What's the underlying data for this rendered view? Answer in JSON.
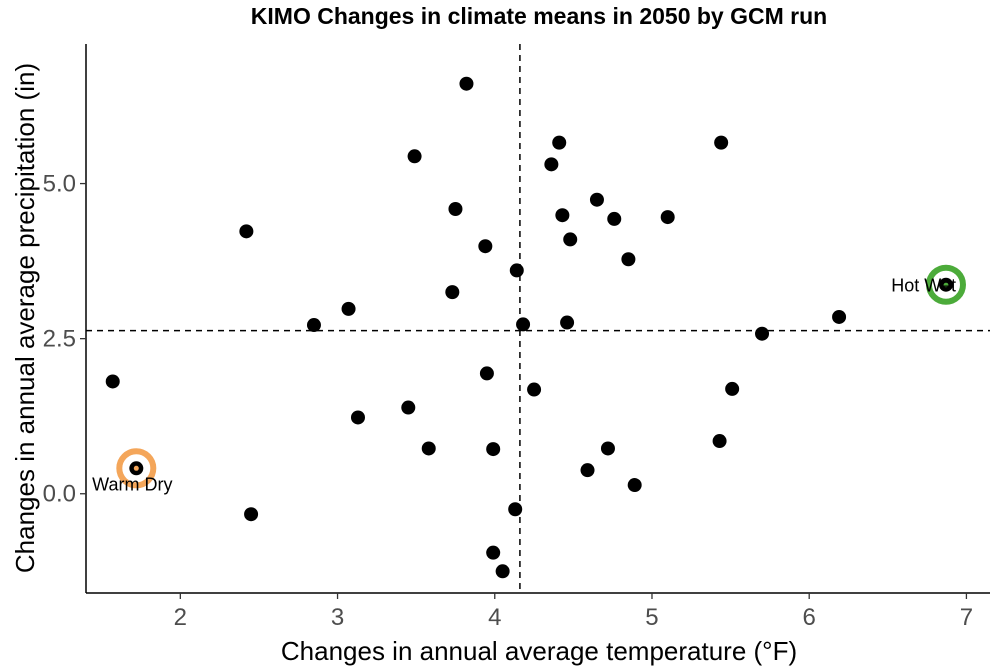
{
  "chart_data": {
    "type": "scatter",
    "title": "KIMO Changes in climate means in 2050 by GCM run",
    "xlabel": "Changes in annual average temperature (°F)",
    "ylabel": "Changes in annual average precipitation (in)",
    "xlim": [
      1.4,
      7.15
    ],
    "ylim": [
      -1.6,
      7.25
    ],
    "x_ticks": [
      2,
      3,
      4,
      5,
      6,
      7
    ],
    "x_tick_labels": [
      "2",
      "3",
      "4",
      "5",
      "6",
      "7"
    ],
    "y_ticks": [
      0,
      2.5,
      5
    ],
    "y_tick_labels": [
      "0.0",
      "2.5",
      "5.0"
    ],
    "grid": false,
    "reference_lines": {
      "x": 4.16,
      "y": 2.63
    },
    "points": [
      {
        "x": 1.57,
        "y": 1.81
      },
      {
        "x": 1.72,
        "y": 0.41
      },
      {
        "x": 2.42,
        "y": 4.23
      },
      {
        "x": 2.45,
        "y": -0.33
      },
      {
        "x": 2.85,
        "y": 2.72
      },
      {
        "x": 3.07,
        "y": 2.98
      },
      {
        "x": 3.13,
        "y": 1.23
      },
      {
        "x": 3.45,
        "y": 1.39
      },
      {
        "x": 3.49,
        "y": 5.44
      },
      {
        "x": 3.58,
        "y": 0.73
      },
      {
        "x": 3.73,
        "y": 3.25
      },
      {
        "x": 3.75,
        "y": 4.59
      },
      {
        "x": 3.82,
        "y": 6.61
      },
      {
        "x": 3.94,
        "y": 3.99
      },
      {
        "x": 3.95,
        "y": 1.94
      },
      {
        "x": 3.99,
        "y": 0.72
      },
      {
        "x": 3.99,
        "y": -0.95
      },
      {
        "x": 4.05,
        "y": -1.25
      },
      {
        "x": 4.13,
        "y": -0.25
      },
      {
        "x": 4.14,
        "y": 3.6
      },
      {
        "x": 4.18,
        "y": 2.73
      },
      {
        "x": 4.25,
        "y": 1.68
      },
      {
        "x": 4.36,
        "y": 5.31
      },
      {
        "x": 4.41,
        "y": 5.66
      },
      {
        "x": 4.43,
        "y": 4.49
      },
      {
        "x": 4.46,
        "y": 2.76
      },
      {
        "x": 4.48,
        "y": 4.1
      },
      {
        "x": 4.59,
        "y": 0.38
      },
      {
        "x": 4.65,
        "y": 4.74
      },
      {
        "x": 4.72,
        "y": 0.73
      },
      {
        "x": 4.76,
        "y": 4.43
      },
      {
        "x": 4.85,
        "y": 3.78
      },
      {
        "x": 4.89,
        "y": 0.14
      },
      {
        "x": 5.1,
        "y": 4.46
      },
      {
        "x": 5.43,
        "y": 0.85
      },
      {
        "x": 5.44,
        "y": 5.66
      },
      {
        "x": 5.51,
        "y": 1.69
      },
      {
        "x": 5.7,
        "y": 2.58
      },
      {
        "x": 6.19,
        "y": 2.85
      },
      {
        "x": 6.87,
        "y": 3.37
      }
    ],
    "highlights": [
      {
        "label": "Warm Dry",
        "x": 1.72,
        "y": 0.41,
        "color": "#f4a65a"
      },
      {
        "label": "Hot Wet",
        "x": 6.87,
        "y": 3.37,
        "color": "#4cab3a"
      }
    ]
  }
}
